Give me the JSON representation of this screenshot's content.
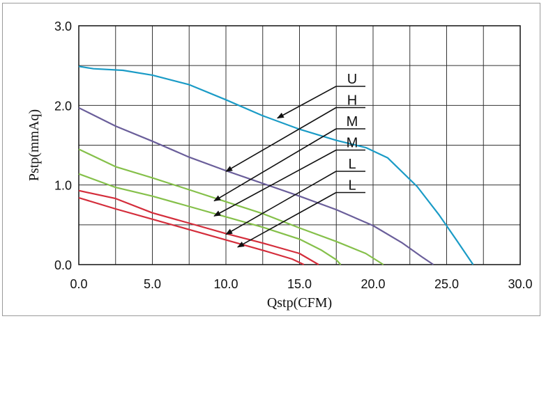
{
  "chart_data": {
    "type": "line",
    "title": "",
    "xlabel": "Qstp(CFM)",
    "ylabel": "Pstp(mmAq)",
    "xlim": [
      0,
      30
    ],
    "ylim": [
      0,
      3
    ],
    "grid": true,
    "x_tick_labels": [
      "0.0",
      "5.0",
      "10.0",
      "15.0",
      "20.0",
      "25.0",
      "30.0"
    ],
    "y_tick_labels": [
      "0.0",
      "1.0",
      "2.0",
      "3.0"
    ],
    "x_tick_values": [
      0,
      5,
      10,
      15,
      20,
      25,
      30
    ],
    "y_tick_values": [
      0,
      1,
      2,
      3
    ],
    "series": [
      {
        "name": "U",
        "color": "#1a9bc6",
        "points": [
          [
            0,
            2.49
          ],
          [
            1,
            2.46
          ],
          [
            3,
            2.44
          ],
          [
            5,
            2.38
          ],
          [
            7.5,
            2.26
          ],
          [
            10,
            2.07
          ],
          [
            12.5,
            1.87
          ],
          [
            15,
            1.7
          ],
          [
            17.5,
            1.56
          ],
          [
            19.5,
            1.47
          ],
          [
            21,
            1.34
          ],
          [
            23,
            0.98
          ],
          [
            24.5,
            0.62
          ],
          [
            25.7,
            0.3
          ],
          [
            26.8,
            0.0
          ]
        ]
      },
      {
        "name": "H",
        "color": "#6a5e9a",
        "points": [
          [
            0,
            1.97
          ],
          [
            2.5,
            1.74
          ],
          [
            5,
            1.55
          ],
          [
            7.5,
            1.35
          ],
          [
            10,
            1.18
          ],
          [
            12.5,
            1.02
          ],
          [
            15,
            0.86
          ],
          [
            17.5,
            0.69
          ],
          [
            20,
            0.49
          ],
          [
            22,
            0.27
          ],
          [
            23.3,
            0.1
          ],
          [
            24.1,
            0.0
          ]
        ]
      },
      {
        "name": "M",
        "color": "#85c04a",
        "points": [
          [
            0,
            1.45
          ],
          [
            2.5,
            1.23
          ],
          [
            5,
            1.09
          ],
          [
            7.5,
            0.94
          ],
          [
            10,
            0.79
          ],
          [
            12.5,
            0.64
          ],
          [
            15,
            0.46
          ],
          [
            17.5,
            0.29
          ],
          [
            19.5,
            0.14
          ],
          [
            20.7,
            0.0
          ]
        ]
      },
      {
        "name": "M",
        "color": "#85c04a",
        "points": [
          [
            0,
            1.14
          ],
          [
            2.5,
            0.97
          ],
          [
            5,
            0.86
          ],
          [
            7.5,
            0.73
          ],
          [
            10,
            0.6
          ],
          [
            12.5,
            0.47
          ],
          [
            15,
            0.32
          ],
          [
            16.5,
            0.18
          ],
          [
            17.5,
            0.06
          ],
          [
            17.8,
            0.0
          ]
        ]
      },
      {
        "name": "L",
        "color": "#d42d3b",
        "points": [
          [
            0,
            0.93
          ],
          [
            2.5,
            0.83
          ],
          [
            5,
            0.65
          ],
          [
            7.5,
            0.52
          ],
          [
            10,
            0.39
          ],
          [
            12.5,
            0.27
          ],
          [
            15,
            0.14
          ],
          [
            16.3,
            0.0
          ]
        ]
      },
      {
        "name": "L",
        "color": "#d42d3b",
        "points": [
          [
            0,
            0.84
          ],
          [
            2.5,
            0.7
          ],
          [
            5,
            0.57
          ],
          [
            7.5,
            0.44
          ],
          [
            10,
            0.31
          ],
          [
            12.5,
            0.18
          ],
          [
            14.5,
            0.07
          ],
          [
            15.3,
            0.0
          ]
        ]
      }
    ],
    "annotations": [
      {
        "label": "U",
        "target": [
          13.5,
          1.84
        ]
      },
      {
        "label": "H",
        "target": [
          10.0,
          1.17
        ]
      },
      {
        "label": "M",
        "target": [
          9.2,
          0.8
        ]
      },
      {
        "label": "M",
        "target": [
          9.2,
          0.61
        ]
      },
      {
        "label": "L",
        "target": [
          10.0,
          0.38
        ]
      },
      {
        "label": "L",
        "target": [
          10.8,
          0.22
        ]
      }
    ]
  }
}
